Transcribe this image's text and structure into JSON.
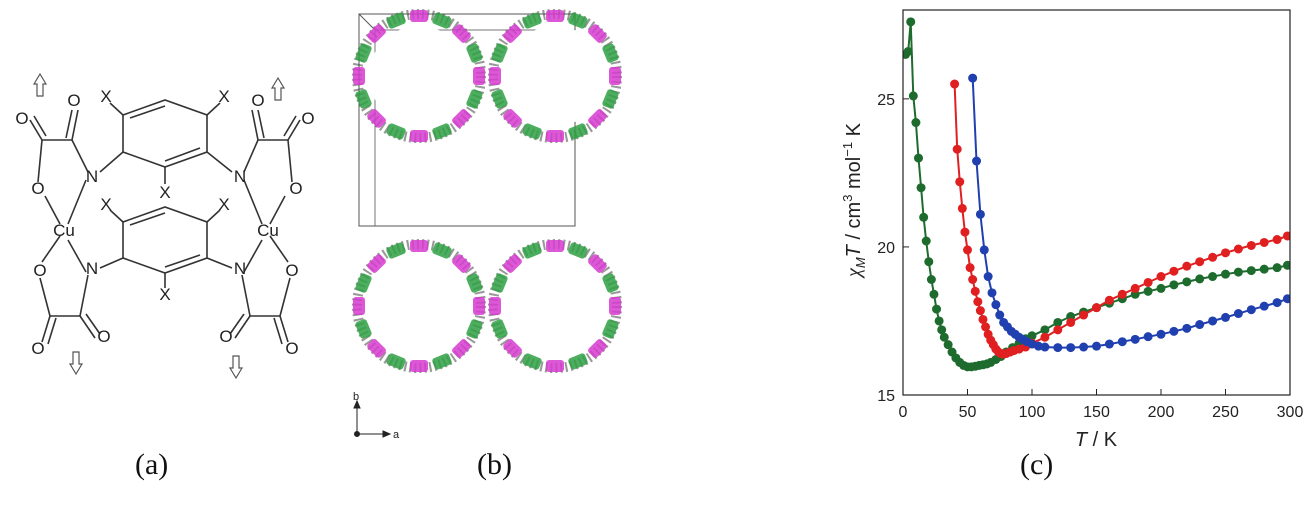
{
  "captions": {
    "a": "(a)",
    "b": "(b)",
    "c": "(c)"
  },
  "molecule": {
    "atom_o": "O",
    "atom_n": "N",
    "atom_cu": "Cu",
    "atom_x": "X"
  },
  "crystal": {
    "axis_b": "b",
    "axis_a": "a",
    "colors": {
      "frame": "#555555",
      "green": "#2ea043",
      "magenta": "#d63bd0"
    }
  },
  "chart_data": {
    "type": "scatter",
    "xlabel_italic": "T",
    "xlabel_rest": " / K",
    "ylabel_chi": "χ",
    "ylabel_sub": "M",
    "ylabel_T": "T",
    "ylabel_unit1": " / cm",
    "ylabel_exp3": "3",
    "ylabel_unit2": " mol",
    "ylabel_expm1": "−1",
    "ylabel_unit3": " K",
    "xlim": [
      0,
      300
    ],
    "ylim": [
      15,
      28
    ],
    "xticks": [
      0,
      50,
      100,
      150,
      200,
      250,
      300
    ],
    "yticks": [
      15,
      20,
      25
    ],
    "grid": false,
    "series": [
      {
        "color": "#1e6b2e",
        "x": [
          2,
          4,
          6,
          8,
          10,
          12,
          14,
          16,
          18,
          20,
          22,
          24,
          26,
          28,
          30,
          32,
          35,
          38,
          41,
          44,
          47,
          50,
          53,
          56,
          59,
          62,
          65,
          68,
          72,
          76,
          80,
          85,
          90,
          95,
          100,
          110,
          120,
          130,
          140,
          150,
          160,
          170,
          180,
          190,
          200,
          210,
          220,
          230,
          240,
          250,
          260,
          270,
          280,
          290,
          298
        ],
        "y": [
          26.5,
          26.6,
          27.6,
          25.1,
          24.2,
          23.0,
          22.0,
          21.0,
          20.2,
          19.5,
          18.9,
          18.4,
          17.9,
          17.5,
          17.2,
          16.95,
          16.7,
          16.45,
          16.25,
          16.1,
          16.0,
          15.95,
          15.95,
          15.97,
          16.0,
          16.02,
          16.05,
          16.1,
          16.2,
          16.3,
          16.45,
          16.6,
          16.75,
          16.9,
          17.0,
          17.2,
          17.45,
          17.65,
          17.8,
          17.95,
          18.1,
          18.25,
          18.4,
          18.5,
          18.6,
          18.72,
          18.82,
          18.92,
          19.0,
          19.08,
          19.15,
          19.2,
          19.25,
          19.3,
          19.38
        ]
      },
      {
        "color": "#e02020",
        "x": [
          40,
          42,
          44,
          46,
          48,
          50,
          52,
          54,
          56,
          58,
          60,
          62,
          64,
          66,
          68,
          70,
          72,
          74,
          76,
          78,
          80,
          83,
          86,
          90,
          95,
          100,
          110,
          120,
          130,
          140,
          150,
          160,
          170,
          180,
          190,
          200,
          210,
          220,
          230,
          240,
          250,
          260,
          270,
          280,
          290,
          298
        ],
        "y": [
          25.5,
          23.3,
          22.2,
          21.3,
          20.5,
          19.9,
          19.3,
          18.9,
          18.5,
          18.15,
          17.85,
          17.55,
          17.3,
          17.05,
          16.85,
          16.7,
          16.55,
          16.45,
          16.4,
          16.38,
          16.4,
          16.45,
          16.5,
          16.55,
          16.62,
          16.75,
          16.95,
          17.2,
          17.45,
          17.7,
          17.95,
          18.2,
          18.4,
          18.6,
          18.8,
          19.0,
          19.18,
          19.35,
          19.5,
          19.65,
          19.8,
          19.93,
          20.05,
          20.15,
          20.25,
          20.37
        ]
      },
      {
        "color": "#2040b0",
        "x": [
          54,
          57,
          60,
          63,
          66,
          69,
          72,
          75,
          78,
          81,
          84,
          87,
          90,
          93,
          96,
          100,
          105,
          110,
          120,
          130,
          140,
          150,
          160,
          170,
          180,
          190,
          200,
          210,
          220,
          230,
          240,
          250,
          260,
          270,
          280,
          290,
          298
        ],
        "y": [
          25.7,
          22.9,
          21.1,
          19.9,
          19.0,
          18.45,
          18.05,
          17.7,
          17.45,
          17.3,
          17.15,
          17.05,
          16.95,
          16.87,
          16.8,
          16.72,
          16.65,
          16.62,
          16.6,
          16.6,
          16.62,
          16.65,
          16.72,
          16.8,
          16.88,
          16.97,
          17.05,
          17.15,
          17.25,
          17.38,
          17.5,
          17.62,
          17.75,
          17.88,
          18.0,
          18.12,
          18.25
        ]
      }
    ]
  }
}
